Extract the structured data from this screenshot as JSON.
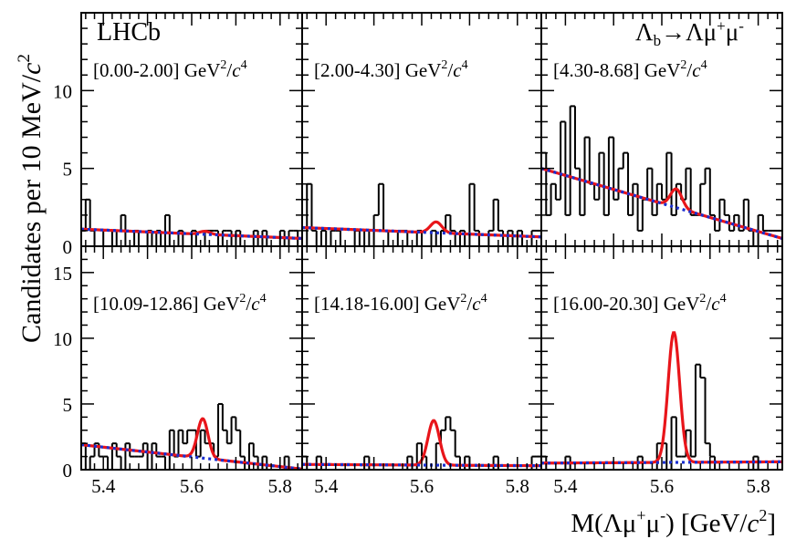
{
  "figure": {
    "experiment": "LHCb",
    "decay": "Λb→Λμ+μ-",
    "decay_parts": {
      "lambda": "Λ",
      "sub_b": "b",
      "arrow": "→",
      "lam2": "Λμ",
      "plus": "+",
      "mu": "μ",
      "minus": "-"
    },
    "ylabel": "Candidates per 10 MeV/c²",
    "ylabel_parts": {
      "main": "Candidates per 10 MeV/",
      "c": "c",
      "exp": "2"
    },
    "xlabel": "M(Λμ+μ-) [GeV/c²]",
    "xlabel_parts": {
      "a": "M(Λμ",
      "plus": "+",
      "b": "μ",
      "minus": "-",
      "c": ") [GeV/",
      "cc": "c",
      "exp": "2",
      "end": "]"
    }
  },
  "q2_unit": {
    "gev": "GeV",
    "two": "2",
    "slash": "/",
    "c": "c",
    "four": "4"
  },
  "chart_data": {
    "type": "histogram-grid",
    "bin_width_GeV": 0.01,
    "x_range": [
      5.35,
      5.85
    ],
    "x_ticks": [
      "5.4",
      "5.6",
      "5.8"
    ],
    "rows": [
      {
        "ylim": [
          0,
          15
        ],
        "y_ticks": [
          "5",
          "10"
        ]
      },
      {
        "ylim": [
          0,
          17
        ],
        "y_ticks": [
          "5",
          "10",
          "15"
        ]
      }
    ],
    "panels": [
      {
        "q2_bin": "[0.00-2.00]",
        "counts": [
          1,
          3,
          1,
          0,
          0,
          1,
          1,
          0,
          1,
          2,
          0,
          0,
          1,
          0,
          0,
          1,
          0,
          1,
          0,
          2,
          0,
          0,
          1,
          0,
          0,
          1,
          0,
          0,
          1,
          1,
          1,
          0,
          1,
          1,
          0,
          1,
          0,
          0,
          0,
          1,
          0,
          1,
          0,
          0,
          0,
          1,
          0,
          1,
          1,
          0
        ],
        "fit": {
          "bkg_start": 1.1,
          "bkg_end": 0.5,
          "peak": 0.2,
          "mu": 5.63,
          "sigma": 0.012
        }
      },
      {
        "q2_bin": "[2.00-4.30]",
        "counts": [
          0,
          4,
          1,
          0,
          1,
          0,
          1,
          1,
          0,
          0,
          0,
          1,
          0,
          1,
          0,
          2,
          4,
          1,
          0,
          0,
          1,
          1,
          0,
          0,
          1,
          0,
          0,
          1,
          0,
          1,
          2,
          1,
          0,
          1,
          0,
          4,
          1,
          0,
          0,
          1,
          3,
          1,
          0,
          1,
          0,
          1,
          0,
          0,
          1,
          1
        ],
        "fit": {
          "bkg_start": 1.2,
          "bkg_end": 0.6,
          "peak": 0.7,
          "mu": 5.63,
          "sigma": 0.012
        }
      },
      {
        "q2_bin": "[4.30-8.68]",
        "counts": [
          6,
          2,
          4,
          3,
          8,
          2,
          9,
          5,
          2,
          7,
          4,
          3,
          6,
          2,
          7,
          3,
          5,
          6,
          2,
          4,
          1,
          3,
          5,
          2,
          4,
          3,
          6,
          2,
          4,
          3,
          5,
          2,
          2,
          4,
          5,
          2,
          1,
          3,
          2,
          1,
          2,
          1,
          3,
          1,
          0,
          2,
          1,
          1,
          1,
          1
        ],
        "fit": {
          "bkg_start": 5.0,
          "bkg_end": 0.5,
          "peak": 1.2,
          "mu": 5.63,
          "sigma": 0.012
        }
      },
      {
        "q2_bin": "[10.09-12.86]",
        "counts": [
          2,
          0,
          1,
          2,
          1,
          1,
          0,
          2,
          1,
          0,
          2,
          1,
          1,
          1,
          2,
          0,
          2,
          1,
          1,
          0,
          3,
          1,
          3,
          2,
          3,
          3,
          1,
          3,
          2,
          2,
          1,
          5,
          3,
          2,
          4,
          3,
          1,
          0,
          2,
          1,
          0,
          1,
          0,
          0,
          0,
          0,
          1,
          0,
          0,
          0
        ],
        "fit": {
          "bkg_start": 1.9,
          "bkg_end": 0.05,
          "peak": 3.0,
          "mu": 5.625,
          "sigma": 0.012
        }
      },
      {
        "q2_bin": "[14.18-16.00]",
        "counts": [
          1,
          0,
          0,
          1,
          0,
          0,
          0,
          0,
          0,
          0,
          0,
          0,
          0,
          1,
          0,
          0,
          0,
          0,
          0,
          0,
          0,
          0,
          1,
          0,
          2,
          1,
          0,
          0,
          2,
          3,
          4,
          3,
          1,
          0,
          1,
          0,
          0,
          0,
          0,
          0,
          1,
          0,
          0,
          0,
          0,
          0,
          0,
          0,
          1,
          1
        ],
        "fit": {
          "bkg_start": 0.4,
          "bkg_end": 0.3,
          "peak": 3.4,
          "mu": 5.625,
          "sigma": 0.012
        }
      },
      {
        "q2_bin": "[16.00-20.30]",
        "counts": [
          1,
          0,
          0,
          0,
          0,
          1,
          0,
          0,
          0,
          0,
          0,
          0,
          0,
          0,
          0,
          0,
          0,
          0,
          0,
          0,
          1,
          0,
          0,
          0,
          2,
          2,
          0,
          4,
          1,
          1,
          3,
          1,
          8,
          7,
          2,
          1,
          0,
          0,
          0,
          0,
          0,
          0,
          0,
          0,
          1,
          0,
          0,
          0,
          0,
          0
        ],
        "fit": {
          "bkg_start": 0.5,
          "bkg_end": 0.6,
          "peak": 9.9,
          "mu": 5.625,
          "sigma": 0.012
        }
      }
    ],
    "series_styles": {
      "data": {
        "color": "#000000"
      },
      "total_fit": {
        "color": "#e8151a"
      },
      "background": {
        "color": "#1a2fd1"
      }
    }
  }
}
